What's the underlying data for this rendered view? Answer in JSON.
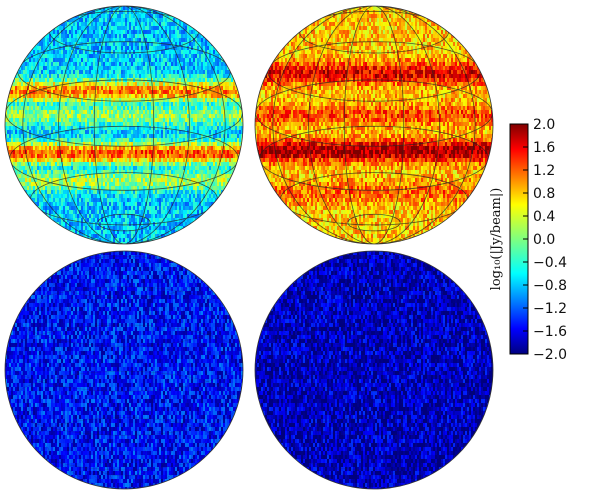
{
  "chart_data": {
    "type": "heatmap",
    "projection": "orthographic",
    "colormap": "jet",
    "panels": [
      {
        "name": "",
        "row": 1,
        "col": 1,
        "overall_level": -0.7,
        "graticule": true,
        "band_levels": [
          {
            "lat": 0.3,
            "level": 1.0
          },
          {
            "lat": -0.22,
            "level": 1.2
          },
          {
            "lat": -0.45,
            "level": 0.2
          },
          {
            "lat": 0.1,
            "level": 0.1
          }
        ]
      },
      {
        "name": "",
        "row": 1,
        "col": 2,
        "overall_level": 0.7,
        "graticule": true,
        "band_levels": [
          {
            "lat": 0.45,
            "level": 1.6
          },
          {
            "lat": 0.1,
            "level": 1.2
          },
          {
            "lat": -0.2,
            "level": 1.9
          },
          {
            "lat": -0.55,
            "level": 1.1
          }
        ]
      },
      {
        "name": "",
        "row": 2,
        "col": 1,
        "overall_level": -1.45,
        "graticule": false,
        "band_levels": []
      },
      {
        "name": "",
        "row": 2,
        "col": 2,
        "overall_level": -1.75,
        "graticule": false,
        "band_levels": []
      }
    ],
    "colorbar": {
      "label": "log₁₀(|Jy/beam|)",
      "vmin": -2.0,
      "vmax": 2.0,
      "ticks": [
        "2.0",
        "1.6",
        "1.2",
        "0.8",
        "0.4",
        "0.0",
        "−0.4",
        "−0.8",
        "−1.2",
        "−1.6",
        "−2.0"
      ]
    },
    "colors": {
      "dark_red": "#800000",
      "red": "#ff0000",
      "yellow": "#ffff00",
      "cyan": "#00ffff",
      "blue": "#0000ff",
      "dark_blue": "#000080"
    }
  }
}
